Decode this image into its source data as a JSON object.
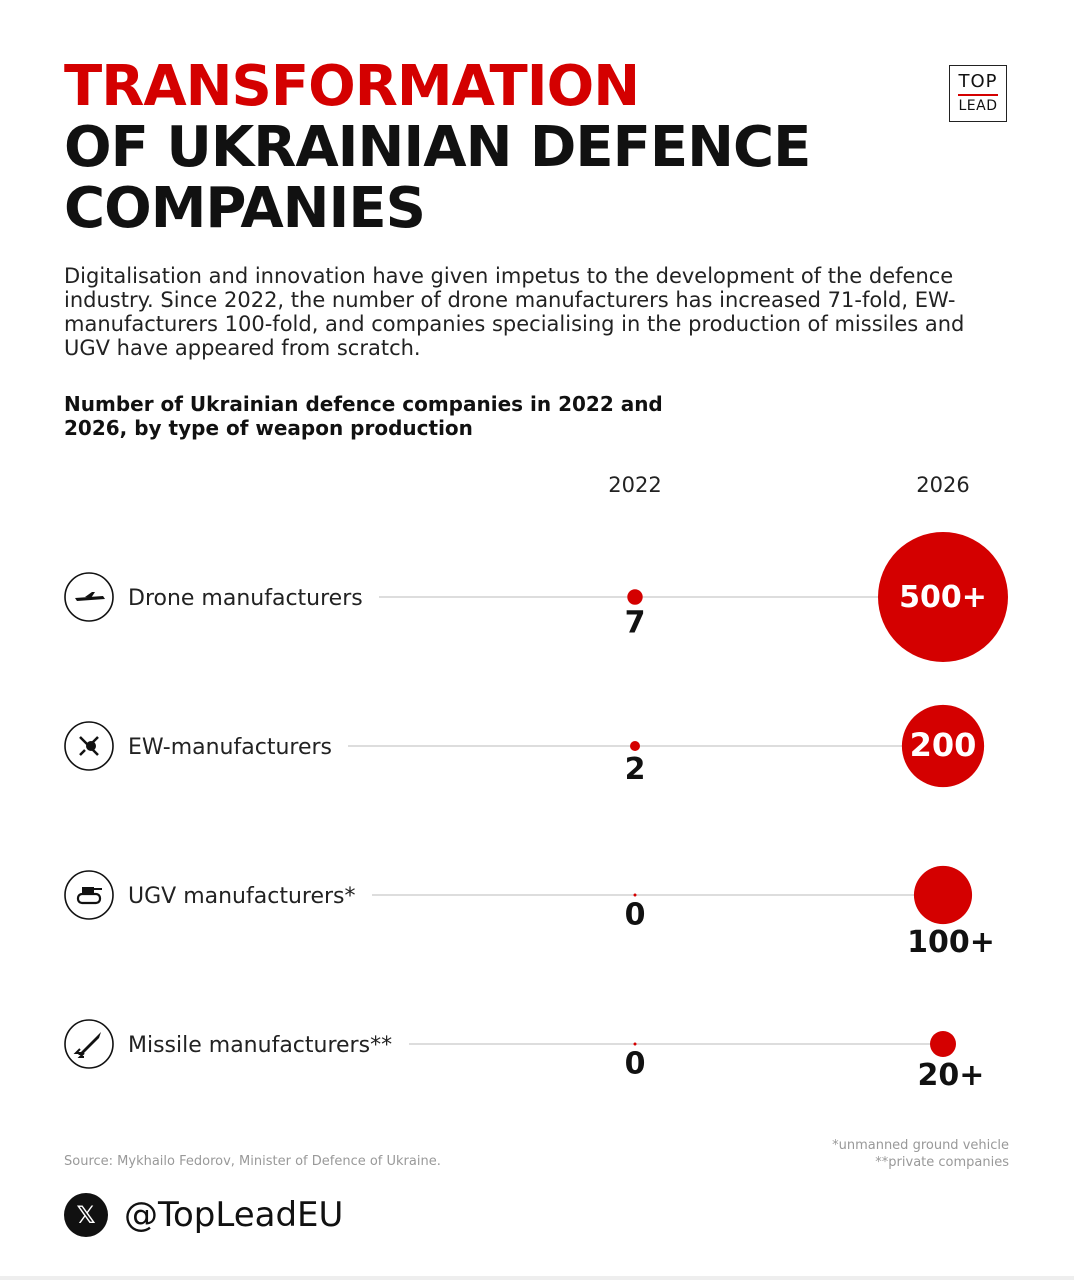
{
  "title": {
    "line1": "TRANSFORMATION",
    "line2": "OF UKRAINIAN DEFENCE",
    "line3": "COMPANIES"
  },
  "logo": {
    "top": "TOP",
    "bottom": "LEAD"
  },
  "intro": "Digitalisation and innovation have given impetus to the development of the defence industry. Since 2022, the number of drone manufacturers has increased 71-fold, EW-manufacturers 100-fold, and companies specialising in the production of missiles and UGV have appeared from scratch.",
  "chart_data": {
    "type": "bubble",
    "title": "Number of Ukrainian defence companies in 2022 and 2026, by type of weapon production",
    "columns": [
      "2022",
      "2026"
    ],
    "rows": [
      {
        "label": "Drone manufacturers",
        "icon": "drone-icon",
        "values": [
          7,
          500
        ],
        "value_labels": [
          "7",
          "500+"
        ]
      },
      {
        "label": "EW-manufacturers",
        "icon": "antenna-icon",
        "values": [
          2,
          200
        ],
        "value_labels": [
          "2",
          "200"
        ]
      },
      {
        "label": "UGV manufacturers*",
        "icon": "ugv-icon",
        "values": [
          0,
          100
        ],
        "value_labels": [
          "0",
          "100+"
        ]
      },
      {
        "label": "Missile manufacturers**",
        "icon": "missile-icon",
        "values": [
          0,
          20
        ],
        "value_labels": [
          "0",
          "20+"
        ]
      }
    ],
    "color": "#d40000"
  },
  "source": "Source: Mykhailo Fedorov, Minister of Defence of Ukraine.",
  "notes": [
    "*unmanned ground vehicle",
    "**private companies"
  ],
  "social": {
    "icon": "x-logo-icon",
    "glyph": "𝕏",
    "handle": "@TopLeadEU"
  }
}
